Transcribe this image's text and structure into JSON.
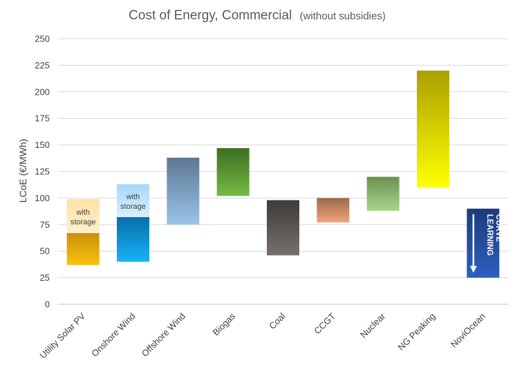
{
  "chart_data": {
    "type": "bar",
    "title": "Cost of Energy, Commercial",
    "subtitle": "(without subsidies)",
    "ylabel": "LCoE (€/MWh)",
    "xlabel": "",
    "ylim": [
      0,
      250
    ],
    "yticks": [
      0,
      25,
      50,
      75,
      100,
      125,
      150,
      175,
      200,
      225,
      250
    ],
    "grid": true,
    "categories": [
      "Utility Solar PV",
      "Onshore Wind",
      "Offshore Wind",
      "Biogas",
      "Coal",
      "CCGT",
      "Nuclear",
      "NG Peaking",
      "NoviOcean"
    ],
    "ranges": [
      {
        "category": "Utility Solar PV",
        "low": 37,
        "high": 67,
        "colors": [
          "#c8900a",
          "#f9c10c"
        ]
      },
      {
        "category": "Onshore Wind",
        "low": 40,
        "high": 82,
        "colors": [
          "#0a6ea8",
          "#14b4f8"
        ]
      },
      {
        "category": "Offshore Wind",
        "low": 75,
        "high": 138,
        "colors": [
          "#5d7791",
          "#9ac4ea"
        ]
      },
      {
        "category": "Biogas",
        "low": 102,
        "high": 147,
        "colors": [
          "#3d6e23",
          "#74bb42"
        ]
      },
      {
        "category": "Coal",
        "low": 46,
        "high": 98,
        "colors": [
          "#3e3b39",
          "#76716c"
        ]
      },
      {
        "category": "CCGT",
        "low": 77,
        "high": 100,
        "colors": [
          "#9a6a4b",
          "#f3a579"
        ]
      },
      {
        "category": "Nuclear",
        "low": 88,
        "high": 120,
        "colors": [
          "#6b9050",
          "#a8d68a"
        ]
      },
      {
        "category": "NG Peaking",
        "low": 110,
        "high": 220,
        "colors": [
          "#aaa000",
          "#ffff00"
        ]
      },
      {
        "category": "NoviOcean",
        "low": 25,
        "high": 90,
        "colors": [
          "#1e3b7b",
          "#2b5fc2"
        ]
      }
    ],
    "storage_extensions": [
      {
        "category": "Utility Solar PV",
        "low": 67,
        "high": 99,
        "colors": [
          "#ffe1a3",
          "#fff0cc"
        ],
        "label": [
          "with",
          "storage"
        ]
      },
      {
        "category": "Onshore Wind",
        "low": 82,
        "high": 113,
        "colors": [
          "#a6d7fb",
          "#d9efff"
        ],
        "label": [
          "with",
          "storage"
        ]
      }
    ],
    "annotations": [
      {
        "category": "NoviOcean",
        "label": [
          "LEARNING",
          "CURVE"
        ]
      }
    ]
  }
}
